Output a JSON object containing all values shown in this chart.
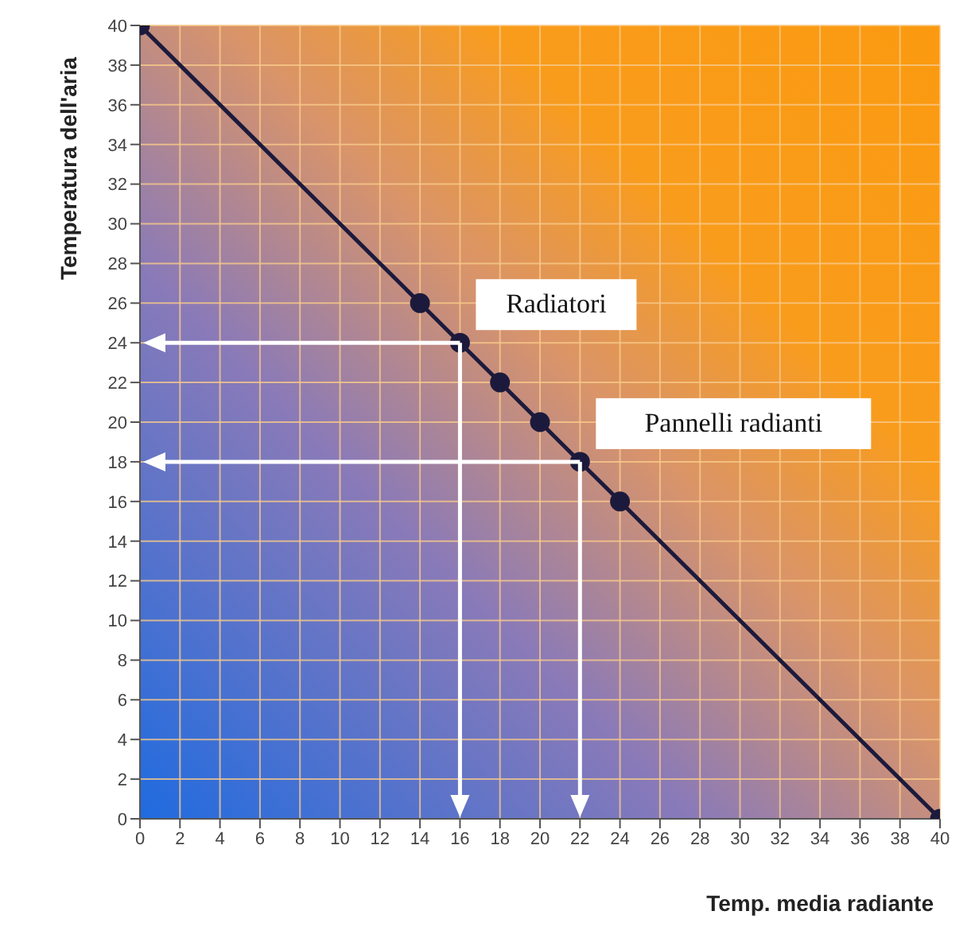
{
  "chart_data": {
    "type": "line",
    "xlabel": "Temp. media radiante",
    "ylabel": "Temperatura dell'aria",
    "x": [
      0,
      14,
      16,
      18,
      20,
      22,
      24,
      40
    ],
    "series": [
      {
        "color": "#1c1a3c",
        "values": [
          40,
          26,
          24,
          22,
          20,
          18,
          16,
          0
        ]
      }
    ],
    "xlim": [
      0,
      40
    ],
    "ylim": [
      0,
      40
    ],
    "xticks": [
      0,
      2,
      4,
      6,
      8,
      10,
      12,
      14,
      16,
      18,
      20,
      22,
      24,
      26,
      28,
      30,
      32,
      34,
      36,
      38,
      40
    ],
    "yticks": [
      0,
      2,
      4,
      6,
      8,
      10,
      12,
      14,
      16,
      18,
      20,
      22,
      24,
      26,
      28,
      30,
      32,
      34,
      36,
      38,
      40
    ],
    "grid": true,
    "marker": "circle",
    "line_style": "solid",
    "legend": false,
    "annotations": [
      {
        "text": "Radiatori",
        "x": 16,
        "y": 24
      },
      {
        "text": "Pannelli radianti",
        "x": 22,
        "y": 18
      }
    ]
  }
}
